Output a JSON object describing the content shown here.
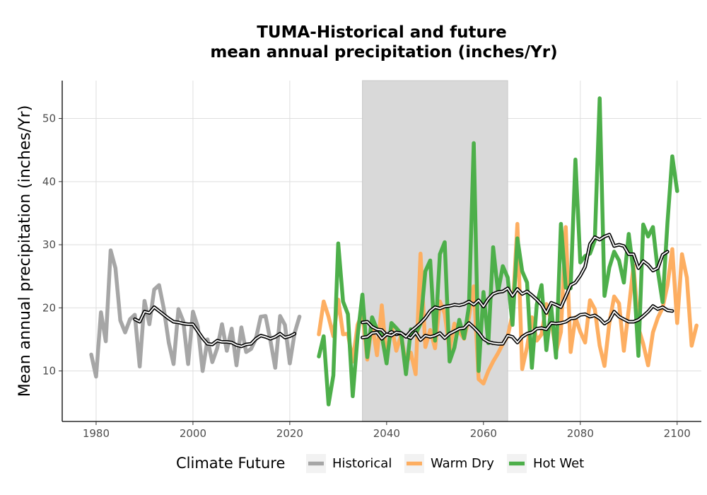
{
  "chart_data": {
    "type": "line",
    "title_line1": "TUMA-Historical and future",
    "title_line2": "mean annual precipitation (inches/Yr)",
    "xlabel": "",
    "ylabel": "Mean annual precipitation (inches/Yr)",
    "xlim": [
      1973,
      2105
    ],
    "ylim": [
      2,
      56
    ],
    "x_ticks": [
      1980,
      2000,
      2020,
      2040,
      2060,
      2080,
      2100
    ],
    "y_ticks": [
      10,
      20,
      30,
      40,
      50
    ],
    "grid": true,
    "shaded_period": [
      2035,
      2065
    ],
    "shaded_color": "#d9d9d9",
    "legend": {
      "title": "Climate Future",
      "position": "bottom"
    },
    "series": [
      {
        "name": "Historical",
        "color": "#a6a6a6",
        "x_start": 1979,
        "values": [
          12.6,
          9.1,
          19.3,
          14.7,
          29.1,
          26.3,
          18.0,
          16.1,
          18.2,
          18.9,
          10.7,
          21.1,
          17.4,
          22.9,
          23.6,
          19.8,
          14.5,
          11.1,
          19.8,
          17.9,
          11.1,
          19.4,
          17.0,
          10.0,
          15.0,
          11.4,
          13.6,
          17.4,
          13.2,
          16.7,
          10.9,
          16.9,
          13.0,
          13.5,
          15.1,
          18.6,
          18.7,
          14.8,
          10.5,
          18.7,
          17.3,
          11.2,
          16.0,
          18.6
        ],
        "rolling_x_start": 1988,
        "rolling": [
          18.2,
          17.8,
          19.4,
          19.2,
          20.1,
          19.5,
          18.9,
          18.3,
          17.8,
          17.7,
          17.5,
          17.4,
          17.4,
          16.3,
          15.2,
          14.3,
          14.2,
          14.8,
          14.6,
          14.6,
          14.5,
          14.1,
          13.9,
          14.2,
          14.3,
          15.1,
          15.6,
          15.4,
          15.1,
          15.4,
          15.9,
          15.3,
          15.5,
          15.9
        ]
      },
      {
        "name": "Warm Dry",
        "color": "#fdae61",
        "x_start": 2026,
        "values": [
          15.8,
          21.0,
          18.6,
          15.5,
          21.3,
          15.8,
          15.9,
          11.5,
          17.3,
          19.2,
          11.8,
          17.5,
          12.5,
          20.4,
          12.0,
          17.2,
          13.2,
          15.7,
          11.0,
          12.9,
          9.5,
          28.6,
          13.8,
          16.5,
          13.6,
          21.0,
          19.1,
          13.2,
          17.5,
          16.2,
          15.1,
          18.5,
          23.4,
          8.7,
          8.0,
          10.0,
          11.5,
          12.8,
          14.3,
          15.5,
          19.0,
          33.3,
          10.3,
          13.8,
          18.5,
          14.8,
          15.8,
          20.6,
          18.0,
          13.0,
          16.2,
          32.8,
          13.0,
          18.5,
          16.2,
          14.5,
          21.2,
          19.8,
          14.0,
          10.8,
          17.6,
          21.8,
          20.7,
          13.2,
          19.8,
          26.7,
          16.8,
          14.3,
          10.9,
          16.1,
          18.4,
          20.0,
          23.6,
          29.3,
          17.6,
          28.5,
          24.8,
          14.0,
          17.2
        ],
        "rolling_x_start": 2035,
        "rolling": [
          17.7,
          17.8,
          17.0,
          16.6,
          16.5,
          15.7,
          16.2,
          15.8,
          16.0,
          15.5,
          15.2,
          16.1,
          14.9,
          15.6,
          15.4,
          15.6,
          16.0,
          15.2,
          15.9,
          16.3,
          16.7,
          16.8,
          17.6,
          16.9,
          16.1,
          15.1,
          14.6,
          14.4,
          14.3,
          14.3,
          15.6,
          15.4,
          14.5,
          15.4,
          15.9,
          16.1,
          16.7,
          16.8,
          16.6,
          17.6,
          17.5,
          17.6,
          17.8,
          18.3,
          18.4,
          18.9,
          19.0,
          18.6,
          18.8,
          18.3,
          17.5,
          18.0,
          19.4,
          18.6,
          18.2,
          17.8,
          17.8,
          18.1,
          18.7,
          19.4,
          20.3,
          19.8,
          20.1,
          19.6,
          19.5
        ]
      },
      {
        "name": "Hot Wet",
        "color": "#4daf4a",
        "x_start": 2026,
        "values": [
          12.3,
          15.5,
          4.7,
          9.3,
          30.2,
          21.0,
          19.0,
          6.0,
          15.5,
          22.1,
          12.2,
          18.5,
          16.6,
          15.6,
          11.2,
          17.6,
          16.8,
          15.9,
          9.5,
          16.6,
          15.8,
          17.5,
          25.8,
          27.5,
          14.8,
          28.5,
          30.4,
          11.5,
          13.7,
          18.1,
          15.2,
          20.3,
          46.1,
          10.0,
          22.5,
          14.4,
          29.6,
          22.5,
          26.6,
          24.8,
          17.3,
          31.0,
          25.8,
          24.0,
          10.5,
          20.5,
          23.6,
          13.3,
          20.1,
          12.1,
          33.3,
          23.2,
          23.1,
          43.5,
          27.2,
          28.2,
          28.6,
          30.7,
          53.2,
          21.9,
          26.4,
          28.9,
          27.5,
          24.0,
          31.7,
          25.6,
          12.4,
          33.2,
          31.3,
          32.8,
          25.9,
          20.9,
          33.5,
          44.0,
          38.5
        ],
        "rolling_x_start": 2035,
        "rolling": [
          15.3,
          15.4,
          16.0,
          16.1,
          15.1,
          15.8,
          15.6,
          16.1,
          16.0,
          15.4,
          16.3,
          16.9,
          17.6,
          18.4,
          19.5,
          20.1,
          19.9,
          20.2,
          20.3,
          20.5,
          20.4,
          20.6,
          21.0,
          20.5,
          21.2,
          20.2,
          21.4,
          22.2,
          22.5,
          22.6,
          23.1,
          21.9,
          23.0,
          22.2,
          22.6,
          22.0,
          21.3,
          20.5,
          19.2,
          20.8,
          20.5,
          20.1,
          21.8,
          23.6,
          24.0,
          25.1,
          26.5,
          30.1,
          31.2,
          30.8,
          31.3,
          31.6,
          29.8,
          30.0,
          29.8,
          28.5,
          28.5,
          26.3,
          27.4,
          26.8,
          25.9,
          26.3,
          28.4,
          28.9
        ]
      }
    ],
    "rolling_style": {
      "inner_color": "#ffffff",
      "outline_color": "#000000"
    }
  }
}
